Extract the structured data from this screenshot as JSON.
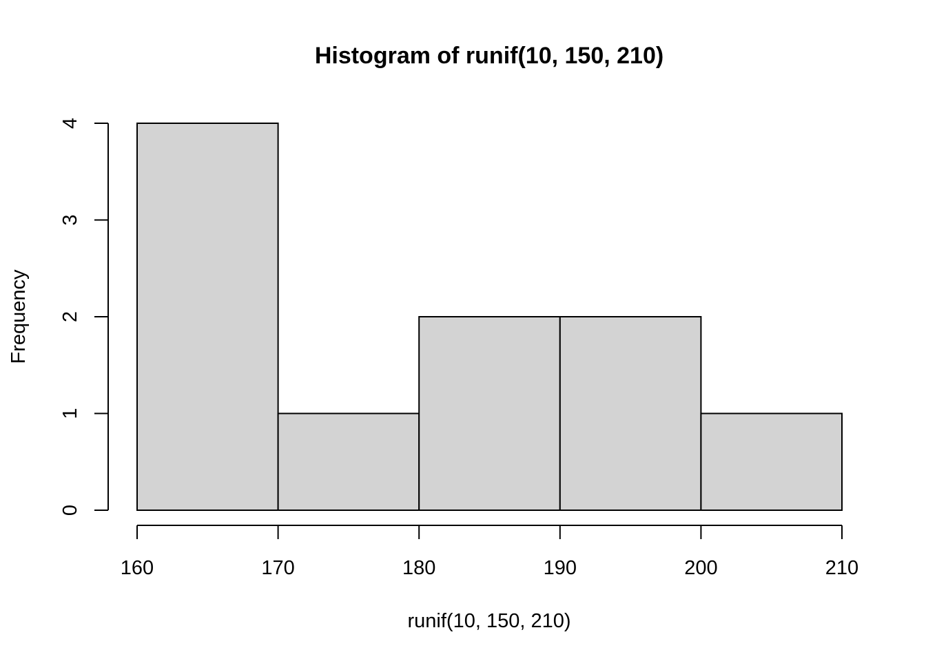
{
  "chart_data": {
    "type": "bar",
    "title": "Histogram of runif(10, 150, 210)",
    "xlabel": "runif(10, 150, 210)",
    "ylabel": "Frequency",
    "bins": [
      {
        "start": 160,
        "end": 170,
        "count": 4
      },
      {
        "start": 170,
        "end": 180,
        "count": 1
      },
      {
        "start": 180,
        "end": 190,
        "count": 2
      },
      {
        "start": 190,
        "end": 200,
        "count": 2
      },
      {
        "start": 200,
        "end": 210,
        "count": 1
      }
    ],
    "xlim": [
      160,
      210
    ],
    "ylim": [
      0,
      4
    ],
    "x_ticks": [
      160,
      170,
      180,
      190,
      200,
      210
    ],
    "y_ticks": [
      0,
      1,
      2,
      3,
      4
    ],
    "grid": false,
    "legend": "none",
    "bar_fill": "#d3d3d3",
    "bar_stroke": "#000000"
  }
}
